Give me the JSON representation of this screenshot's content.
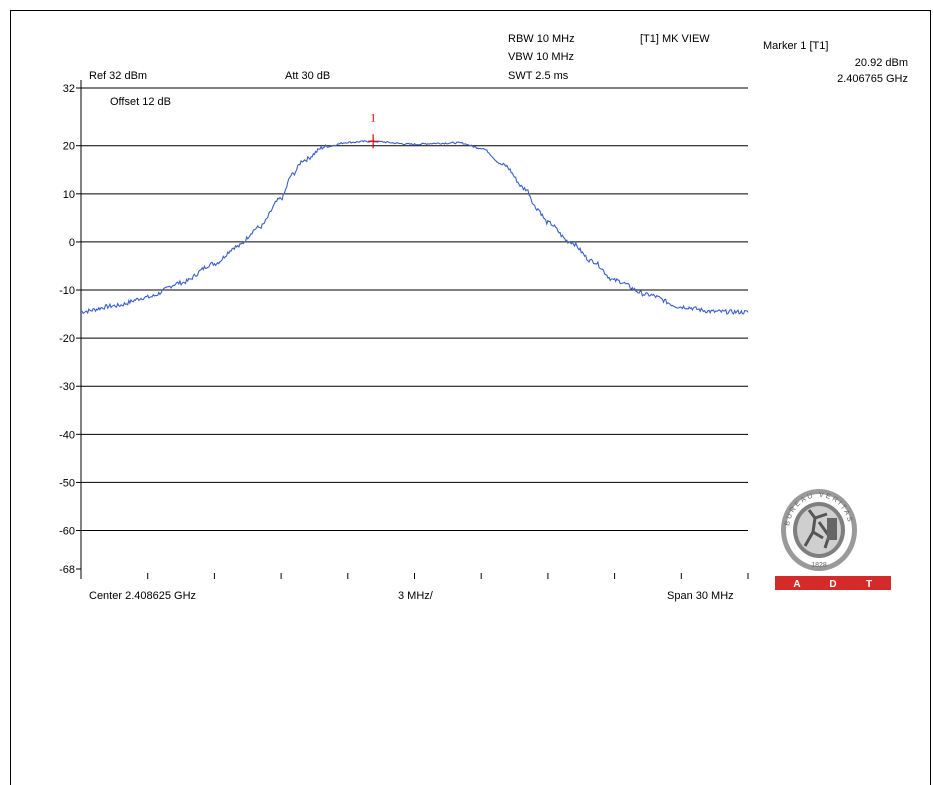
{
  "header": {
    "rbw": "RBW 10 MHz",
    "vbw": "VBW 10 MHz",
    "swt": "SWT 2.5 ms",
    "trace_mode": "[T1] MK VIEW",
    "marker_title": "Marker 1 [T1]",
    "marker_level": "20.92 dBm",
    "marker_freq": "2.406765 GHz",
    "ref_level": "Ref 32 dBm",
    "attenuation": "Att  30 dB",
    "offset": "Offset 12 dB",
    "marker_label": "1"
  },
  "footer": {
    "center": "Center 2.408625 GHz",
    "per_div": "3 MHz/",
    "span": "Span 30 MHz"
  },
  "logo": {
    "text_top": "BUREAU VERITAS",
    "year": "1828",
    "letters": [
      "A",
      "D",
      "T"
    ]
  },
  "colors": {
    "trace": "#3a5fcd",
    "marker": "#e00000",
    "logo_band": "#d42a2a",
    "logo_grey": "#8a8a8a"
  },
  "chart_data": {
    "type": "line",
    "title": "",
    "xlabel": "",
    "ylabel": "",
    "ylim": [
      -68,
      32
    ],
    "xlim": [
      -15,
      15
    ],
    "x_unit": "MHz offset from center",
    "y_unit": "dBm",
    "yticks": [
      32,
      20,
      10,
      0,
      -10,
      -20,
      -30,
      -40,
      -50,
      -60,
      -68
    ],
    "grid": true,
    "series": [
      {
        "x": [
          -15,
          -13.5,
          -12,
          -10.5,
          -9,
          -8,
          -7,
          -6,
          -5.5,
          -5,
          -4,
          -3,
          -2,
          0,
          1,
          2,
          3,
          4,
          5,
          5.5,
          6,
          7,
          8,
          9,
          10.5,
          12,
          13.5,
          15
        ],
        "y": [
          -14.5,
          -13.3,
          -11.5,
          -8.5,
          -4.5,
          -1,
          3,
          9,
          14,
          17,
          19.8,
          20.7,
          20.92,
          20.3,
          20.5,
          20.6,
          19.5,
          16,
          11,
          7,
          4,
          0,
          -4,
          -8,
          -11,
          -13.5,
          -14.5,
          -14.6
        ]
      }
    ],
    "marker": {
      "x": -1.86,
      "y": 20.92,
      "label": "1"
    }
  }
}
